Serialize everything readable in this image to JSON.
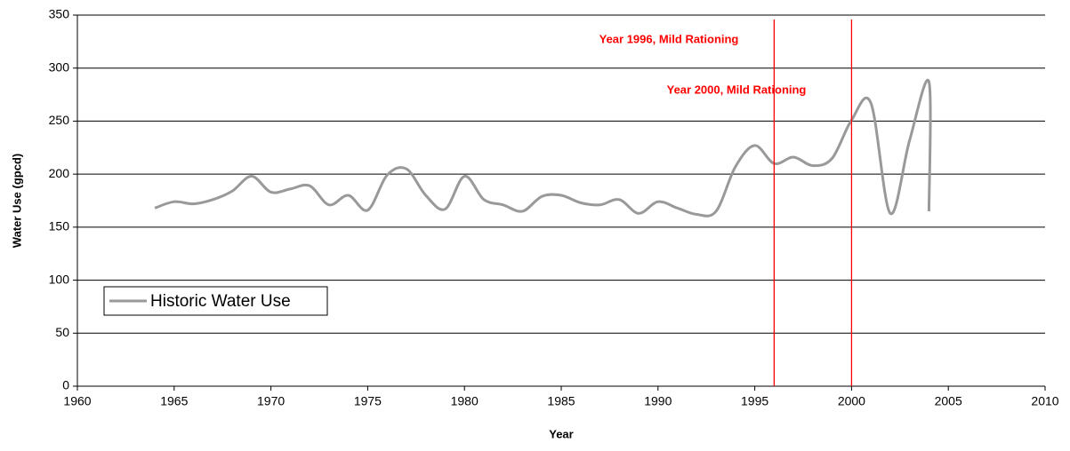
{
  "chart_data": {
    "type": "line",
    "x_label": "Year",
    "y_label": "Water Use (gpcd)",
    "x": [
      1964,
      1965,
      1966,
      1967,
      1968,
      1969,
      1970,
      1971,
      1972,
      1973,
      1974,
      1975,
      1976,
      1977,
      1978,
      1979,
      1980,
      1981,
      1982,
      1983,
      1984,
      1985,
      1986,
      1987,
      1988,
      1989,
      1990,
      1991,
      1992,
      1993,
      1994,
      1995,
      1996,
      1997,
      1998,
      1999,
      2000,
      2001,
      2002,
      2003,
      2004,
      2004
    ],
    "series": [
      {
        "name": "Historic Water Use",
        "color": "#999999",
        "values": [
          168,
          174,
          172,
          176,
          184,
          198,
          183,
          186,
          189,
          171,
          180,
          166,
          199,
          205,
          180,
          167,
          198,
          176,
          171,
          165,
          179,
          180,
          173,
          171,
          176,
          163,
          174,
          168,
          162,
          165,
          207,
          227,
          210,
          216,
          208,
          215,
          251,
          267,
          163,
          232,
          287,
          165
        ]
      }
    ],
    "reference_lines": [
      {
        "x": 1996,
        "label": "Year 1996, Mild Rationing",
        "color": "#ff0000"
      },
      {
        "x": 2000,
        "label": "Year 2000, Mild Rationing",
        "color": "#ff0000"
      }
    ],
    "xlim": [
      1960,
      2010
    ],
    "xticks": [
      1960,
      1965,
      1970,
      1975,
      1980,
      1985,
      1990,
      1995,
      2000,
      2005,
      2010
    ],
    "ylim": [
      0,
      350
    ],
    "yticks": [
      0,
      50,
      100,
      150,
      200,
      250,
      300,
      350
    ],
    "grid": true,
    "legend": "lower left"
  }
}
